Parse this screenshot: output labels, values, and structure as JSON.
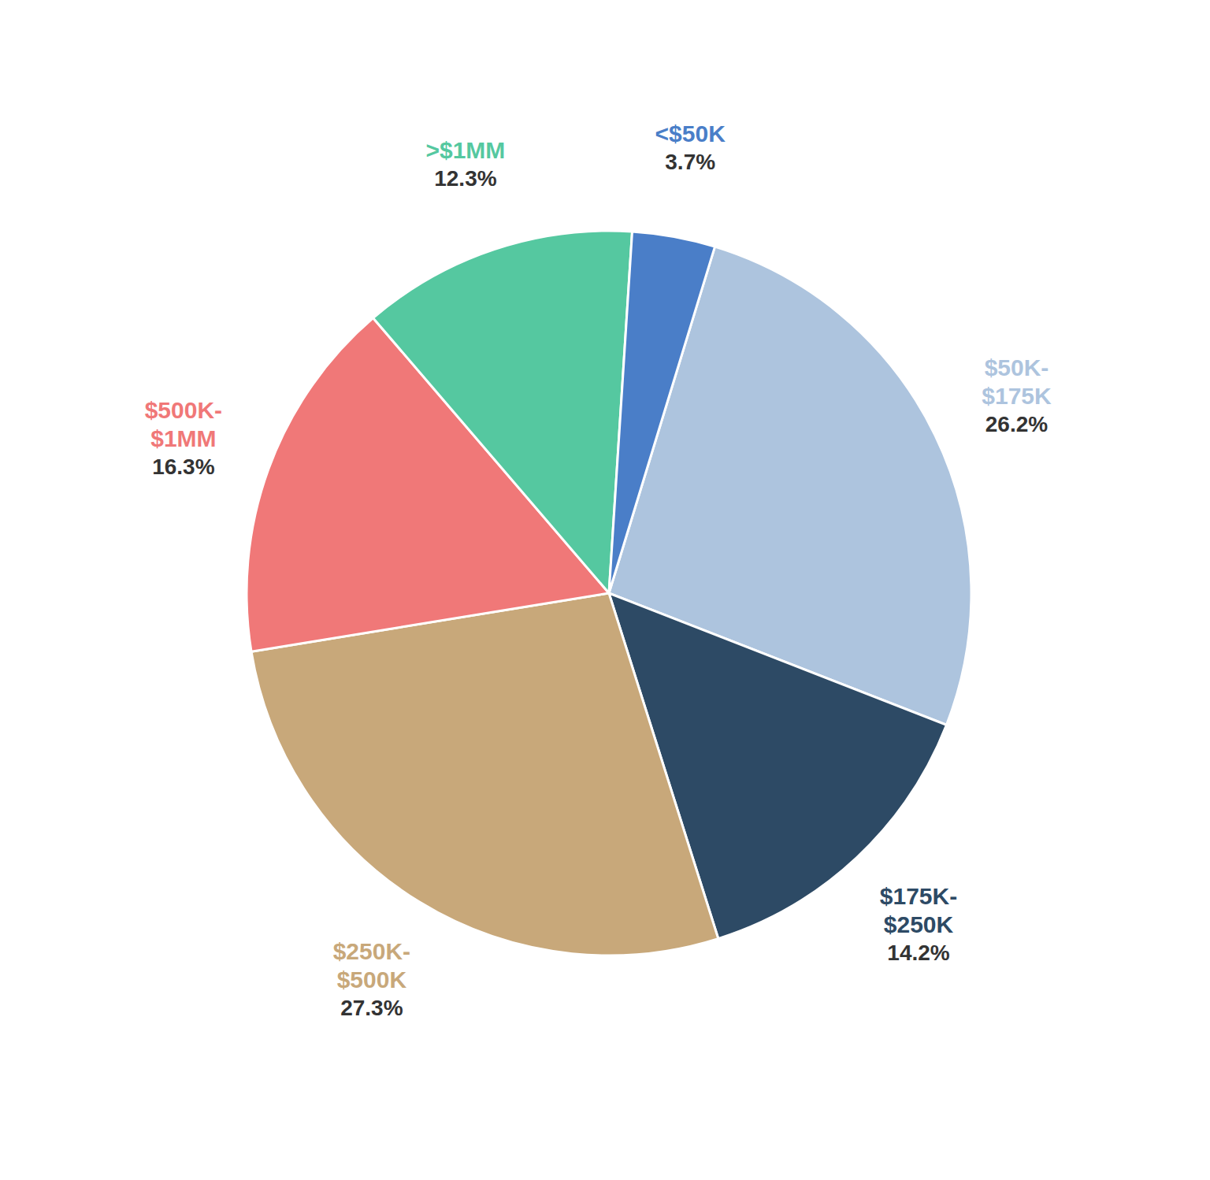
{
  "chart_data": {
    "type": "pie",
    "categories": [
      "$50K-\n$175K",
      "$175K-\n$250K",
      "$250K-\n$500K",
      "$500K-\n$1MM",
      ">$1MM",
      "<$50K"
    ],
    "values": [
      26.2,
      14.2,
      27.3,
      16.3,
      12.3,
      3.7
    ],
    "value_labels": [
      "26.2%",
      "14.2%",
      "27.3%",
      "16.3%",
      "12.3%",
      "3.7%"
    ],
    "colors": [
      "#adc4de",
      "#2d4a65",
      "#c8a87a",
      "#f07878",
      "#55c8a0",
      "#4a7ec8"
    ],
    "data_labels": true
  }
}
